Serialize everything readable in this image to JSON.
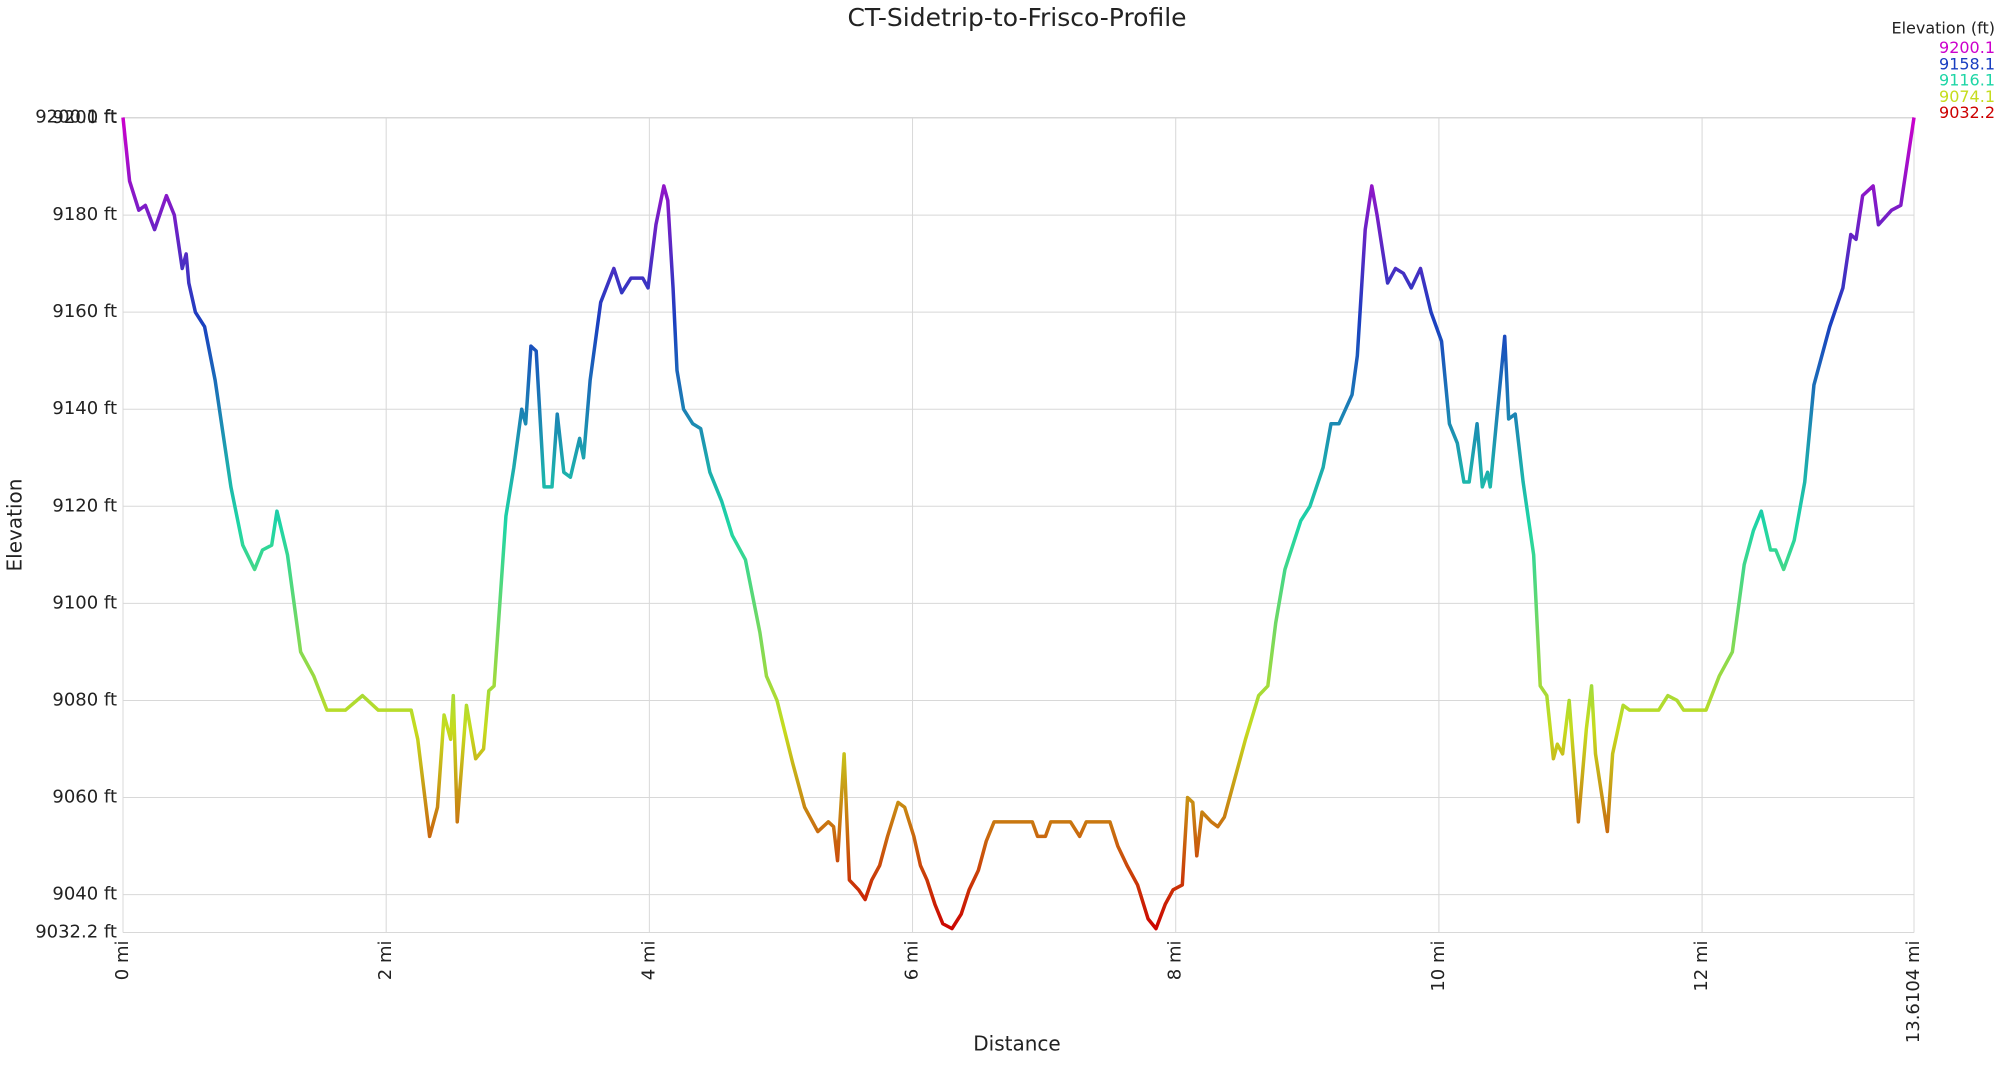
{
  "chart_data": {
    "type": "line",
    "title": "CT-Sidetrip-to-Frisco-Profile",
    "xlabel": "Distance",
    "ylabel": "Elevation",
    "legend": {
      "title": "Elevation (ft)",
      "entries": [
        {
          "value": 9200.1,
          "color": "#cc00cc"
        },
        {
          "value": 9158.1,
          "color": "#1a3fc0"
        },
        {
          "value": 9116.1,
          "color": "#1ed6a6"
        },
        {
          "value": 9074.1,
          "color": "#c6dc1e"
        },
        {
          "value": 9032.2,
          "color": "#cc0000"
        }
      ]
    },
    "xlim": [
      0,
      13.6104
    ],
    "ylim": [
      9032.2,
      9200.1
    ],
    "grid": true,
    "xticks": [
      {
        "value": 0,
        "label": "0 mi"
      },
      {
        "value": 2,
        "label": "2 mi"
      },
      {
        "value": 4,
        "label": "4 mi"
      },
      {
        "value": 6,
        "label": "6 mi"
      },
      {
        "value": 8,
        "label": "8 mi"
      },
      {
        "value": 10,
        "label": "10 mi"
      },
      {
        "value": 12,
        "label": "12 mi"
      },
      {
        "value": 13.6104,
        "label": "13.6104 mi"
      }
    ],
    "yticks": [
      {
        "value": 9032.2,
        "label": "9032.2 ft"
      },
      {
        "value": 9040,
        "label": "9040 ft"
      },
      {
        "value": 9060,
        "label": "9060 ft"
      },
      {
        "value": 9080,
        "label": "9080 ft"
      },
      {
        "value": 9100,
        "label": "9100 ft"
      },
      {
        "value": 9120,
        "label": "9120 ft"
      },
      {
        "value": 9140,
        "label": "9140 ft"
      },
      {
        "value": 9160,
        "label": "9160 ft"
      },
      {
        "value": 9180,
        "label": "9180 ft"
      },
      {
        "value": 9200,
        "label": "9200 ft"
      },
      {
        "value": 9200.1,
        "label": "9200.1 ft"
      }
    ],
    "x": [
      0,
      0.05,
      0.12,
      0.17,
      0.24,
      0.33,
      0.39,
      0.45,
      0.48,
      0.5,
      0.55,
      0.62,
      0.7,
      0.82,
      0.91,
      1.0,
      1.06,
      1.13,
      1.17,
      1.25,
      1.35,
      1.45,
      1.55,
      1.69,
      1.82,
      1.94,
      2.19,
      2.24,
      2.33,
      2.39,
      2.44,
      2.49,
      2.51,
      2.54,
      2.61,
      2.68,
      2.74,
      2.78,
      2.82,
      2.91,
      2.97,
      3.03,
      3.06,
      3.1,
      3.14,
      3.2,
      3.26,
      3.3,
      3.35,
      3.4,
      3.47,
      3.5,
      3.55,
      3.63,
      3.73,
      3.79,
      3.86,
      3.95,
      3.99,
      4.05,
      4.11,
      4.14,
      4.18,
      4.21,
      4.26,
      4.33,
      4.39,
      4.46,
      4.55,
      4.63,
      4.73,
      4.84,
      4.89,
      4.97,
      5.09,
      5.18,
      5.28,
      5.36,
      5.4,
      5.43,
      5.48,
      5.52,
      5.59,
      5.64,
      5.69,
      5.75,
      5.81,
      5.89,
      5.94,
      6.01,
      6.06,
      6.11,
      6.17,
      6.23,
      6.3,
      6.37,
      6.43,
      6.5,
      6.56,
      6.62,
      6.72,
      6.91,
      6.95,
      7.01,
      7.05,
      7.2,
      7.27,
      7.32,
      7.5,
      7.56,
      7.63,
      7.71,
      7.79,
      7.85,
      7.92,
      7.98,
      8.05,
      8.09,
      8.13,
      8.16,
      8.2,
      8.27,
      8.32,
      8.37,
      8.45,
      8.53,
      8.63,
      8.7,
      8.76,
      8.83,
      8.95,
      9.02,
      9.12,
      9.18,
      9.24,
      9.34,
      9.38,
      9.44,
      9.49,
      9.53,
      9.61,
      9.67,
      9.73,
      9.79,
      9.86,
      9.94,
      10.02,
      10.08,
      10.14,
      10.19,
      10.23,
      10.29,
      10.33,
      10.37,
      10.39,
      10.45,
      10.5,
      10.53,
      10.58,
      10.64,
      10.72,
      10.77,
      10.82,
      10.87,
      10.9,
      10.94,
      10.99,
      11.06,
      11.12,
      11.16,
      11.19,
      11.28,
      11.32,
      11.4,
      11.45,
      11.67,
      11.74,
      11.81,
      11.86,
      12.03,
      12.13,
      12.23,
      12.32,
      12.39,
      12.45,
      12.52,
      12.56,
      12.62,
      12.7,
      12.78,
      12.85,
      12.97,
      13.07,
      13.13,
      13.17,
      13.22,
      13.3,
      13.34,
      13.44,
      13.51,
      13.6104
    ],
    "values": [
      9200.1,
      9187,
      9181,
      9182,
      9177,
      9184,
      9180,
      9169,
      9172,
      9166,
      9160,
      9157,
      9146,
      9124,
      9112,
      9107,
      9111,
      9112,
      9119,
      9110,
      9090,
      9085,
      9078,
      9078,
      9081,
      9078,
      9078,
      9072,
      9052,
      9058,
      9077,
      9072,
      9081,
      9055,
      9079,
      9068,
      9070,
      9082,
      9083,
      9118,
      9128,
      9140,
      9137,
      9153,
      9152,
      9124,
      9124,
      9139,
      9127,
      9126,
      9134,
      9130,
      9146,
      9162,
      9169,
      9164,
      9167,
      9167,
      9165,
      9178,
      9186,
      9183,
      9165,
      9148,
      9140,
      9137,
      9136,
      9127,
      9121,
      9114,
      9109,
      9094,
      9085,
      9080,
      9067,
      9058,
      9053,
      9055,
      9054,
      9047,
      9069,
      9043,
      9041,
      9039,
      9043,
      9046,
      9052,
      9059,
      9058,
      9052,
      9046,
      9043,
      9038,
      9034,
      9033,
      9036,
      9041,
      9045,
      9051,
      9055,
      9055,
      9055,
      9052,
      9052,
      9055,
      9055,
      9052,
      9055,
      9055,
      9050,
      9046,
      9042,
      9035,
      9033,
      9038,
      9041,
      9042,
      9060,
      9059,
      9048,
      9057,
      9055,
      9054,
      9056,
      9064,
      9072,
      9081,
      9083,
      9096,
      9107,
      9117,
      9120,
      9128,
      9137,
      9137,
      9143,
      9151,
      9177,
      9186,
      9180,
      9166,
      9169,
      9168,
      9165,
      9169,
      9160,
      9154,
      9137,
      9133,
      9125,
      9125,
      9137,
      9124,
      9127,
      9124,
      9141,
      9155,
      9138,
      9139,
      9125,
      9110,
      9083,
      9081,
      9068,
      9071,
      9069,
      9080,
      9055,
      9074,
      9083,
      9069,
      9053,
      9069,
      9079,
      9078,
      9078,
      9081,
      9080,
      9078,
      9078,
      9085,
      9090,
      9108,
      9115,
      9119,
      9111,
      9111,
      9107,
      9113,
      9125,
      9145,
      9157,
      9165,
      9176,
      9175,
      9184,
      9186,
      9178,
      9181,
      9182,
      9200.1
    ]
  }
}
